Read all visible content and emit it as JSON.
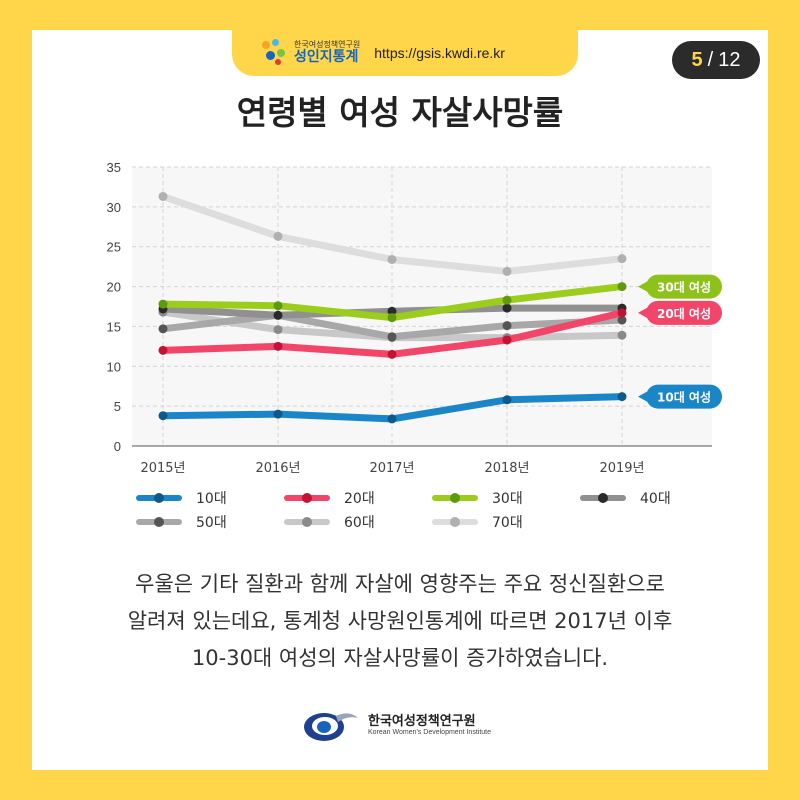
{
  "header": {
    "org_small": "한국여성정책연구원",
    "brand": "성인지통계",
    "url": "https://gsis.kwdi.re.kr",
    "page_current": "5",
    "page_separator": "/",
    "page_total": "12",
    "colors": {
      "accent": "#ffd54a",
      "brand": "#1565c0"
    }
  },
  "description": [
    "우울은 기타 질환과 함께 자살에 영향주는 주요 정신질환으로",
    "알려져 있는데요, 통계청 사망원인통계에 따르면 2017년 이후",
    "10-30대 여성의 자살사망률이 증가하였습니다."
  ],
  "footer": {
    "org_name": "한국여성정책연구원",
    "org_name_en": "Korean Women's Development Institute"
  },
  "chart_data": {
    "type": "line",
    "title": "연령별 여성 자살사망률",
    "x": [
      "2015년",
      "2016년",
      "2017년",
      "2018년",
      "2019년"
    ],
    "ylim": [
      0,
      35
    ],
    "yticks": [
      0,
      5,
      10,
      15,
      20,
      25,
      30,
      35
    ],
    "grid": true,
    "legend_position": "bottom",
    "series": [
      {
        "name": "10대",
        "values": [
          3.8,
          4.0,
          3.4,
          5.8,
          6.2
        ],
        "color": "#1a86c7",
        "dot_color": "#0d5a8a"
      },
      {
        "name": "20대",
        "values": [
          12.0,
          12.5,
          11.5,
          13.3,
          16.7
        ],
        "color": "#f2456a",
        "dot_color": "#c41235"
      },
      {
        "name": "30대",
        "values": [
          17.8,
          17.6,
          16.1,
          18.3,
          20.0
        ],
        "color": "#9ccc1c",
        "dot_color": "#5e9a0e"
      },
      {
        "name": "40대",
        "values": [
          17.2,
          16.4,
          16.9,
          17.3,
          17.3
        ],
        "color": "#909090",
        "dot_color": "#2a2a2a"
      },
      {
        "name": "50대",
        "values": [
          14.7,
          16.4,
          13.7,
          15.1,
          15.8
        ],
        "color": "#a8a8a8",
        "dot_color": "#555555"
      },
      {
        "name": "60대",
        "values": [
          16.8,
          14.6,
          13.6,
          13.6,
          13.9
        ],
        "color": "#c8c8c8",
        "dot_color": "#8a8a8a"
      },
      {
        "name": "70대",
        "values": [
          31.3,
          26.3,
          23.4,
          21.9,
          23.5
        ],
        "color": "#dddddd",
        "dot_color": "#b0b0b0"
      }
    ],
    "annotations": [
      {
        "text": "30대 여성",
        "series": "30대",
        "color": "#8ec21a"
      },
      {
        "text": "20대 여성",
        "series": "20대",
        "color": "#f2456a"
      },
      {
        "text": "10대 여성",
        "series": "10대",
        "color": "#1a86c7"
      }
    ]
  }
}
